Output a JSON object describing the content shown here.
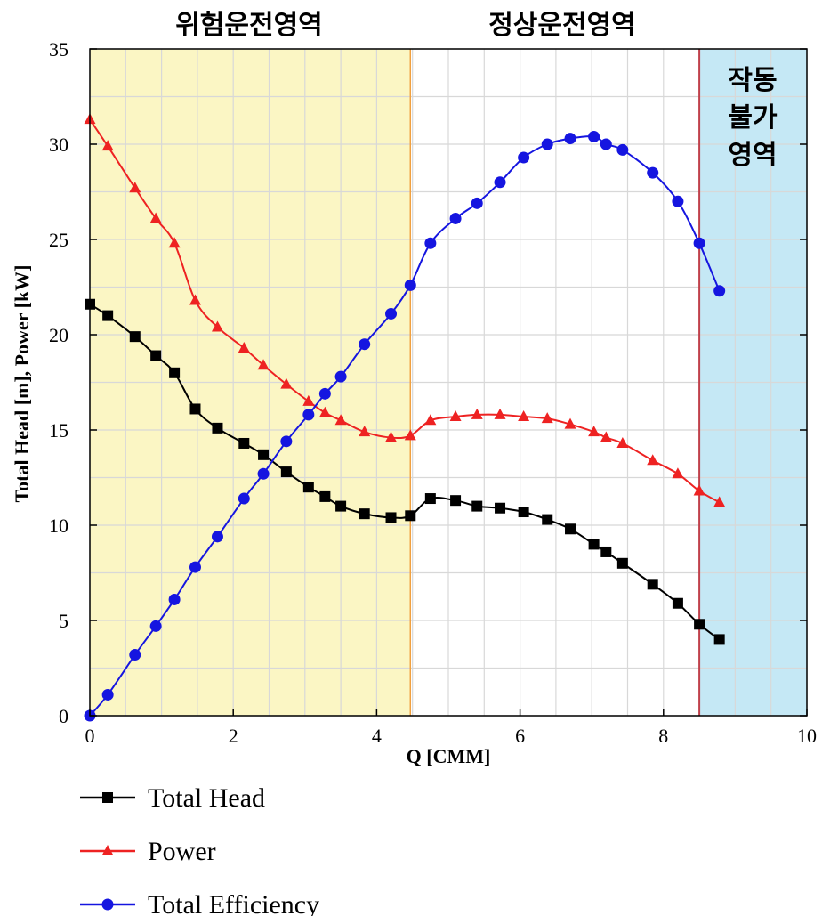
{
  "chart_data": {
    "type": "line",
    "xlabel": "Q [CMM]",
    "ylabel": "Total Head [m], Power [kW]",
    "xlim": [
      0,
      10
    ],
    "ylim": [
      0,
      35
    ],
    "x_ticks": [
      "0",
      "2",
      "4",
      "6",
      "8",
      "10"
    ],
    "y_ticks": [
      "0",
      "5",
      "10",
      "15",
      "20",
      "25",
      "30",
      "35"
    ],
    "grid": true,
    "legend_position": "bottom-left",
    "regions": [
      {
        "label": "위험운전영역",
        "x_range": [
          0,
          4.47
        ],
        "color": "#ee2222",
        "fill": "#fbf6c4"
      },
      {
        "label": "정상운전영역",
        "x_range": [
          4.47,
          8.5
        ],
        "color": "#2233dd",
        "fill": "#ffffff"
      },
      {
        "label_lines": [
          "작동",
          "불가",
          "영역"
        ],
        "x_range": [
          8.5,
          10
        ],
        "color": "#000000",
        "fill": "#c5e8f5"
      }
    ],
    "series": [
      {
        "name": "Total Head",
        "color": "#000000",
        "marker": "square",
        "x": [
          0,
          0.25,
          0.63,
          0.92,
          1.18,
          1.47,
          1.78,
          2.15,
          2.42,
          2.74,
          3.05,
          3.28,
          3.5,
          3.83,
          4.2,
          4.47,
          4.75,
          5.1,
          5.4,
          5.72,
          6.05,
          6.38,
          6.7,
          7.03,
          7.2,
          7.43,
          7.85,
          8.2,
          8.5,
          8.78
        ],
        "y": [
          21.6,
          21.0,
          19.9,
          18.9,
          18.0,
          16.1,
          15.1,
          14.3,
          13.7,
          12.8,
          12.0,
          11.5,
          11.0,
          10.6,
          10.4,
          10.5,
          11.4,
          11.3,
          11.0,
          10.9,
          10.7,
          10.3,
          9.8,
          9.0,
          8.6,
          8.0,
          6.9,
          5.9,
          4.8,
          4.0
        ]
      },
      {
        "name": "Power",
        "color": "#ee2222",
        "marker": "triangle",
        "x": [
          0,
          0.25,
          0.63,
          0.92,
          1.18,
          1.47,
          1.78,
          2.15,
          2.42,
          2.74,
          3.05,
          3.28,
          3.5,
          3.83,
          4.2,
          4.47,
          4.75,
          5.1,
          5.4,
          5.72,
          6.05,
          6.38,
          6.7,
          7.03,
          7.2,
          7.43,
          7.85,
          8.2,
          8.5,
          8.78
        ],
        "y": [
          31.3,
          29.9,
          27.7,
          26.1,
          24.8,
          21.8,
          20.4,
          19.3,
          18.4,
          17.4,
          16.5,
          15.9,
          15.5,
          14.9,
          14.6,
          14.7,
          15.5,
          15.7,
          15.8,
          15.8,
          15.7,
          15.6,
          15.3,
          14.9,
          14.6,
          14.3,
          13.4,
          12.7,
          11.8,
          11.2
        ]
      },
      {
        "name": "Total Efficiency",
        "color": "#1515e0",
        "marker": "circle",
        "x": [
          0,
          0.25,
          0.63,
          0.92,
          1.18,
          1.47,
          1.78,
          2.15,
          2.42,
          2.74,
          3.05,
          3.28,
          3.5,
          3.83,
          4.2,
          4.47,
          4.75,
          5.1,
          5.4,
          5.72,
          6.05,
          6.38,
          6.7,
          7.03,
          7.2,
          7.43,
          7.85,
          8.2,
          8.5,
          8.78
        ],
        "y": [
          0.0,
          1.1,
          3.2,
          4.7,
          6.1,
          7.8,
          9.4,
          11.4,
          12.7,
          14.4,
          15.8,
          16.9,
          17.8,
          19.5,
          21.1,
          22.6,
          24.8,
          26.1,
          26.9,
          28.0,
          29.3,
          30.0,
          30.3,
          30.4,
          30.0,
          29.7,
          28.5,
          27.0,
          24.8,
          22.3
        ]
      }
    ]
  }
}
